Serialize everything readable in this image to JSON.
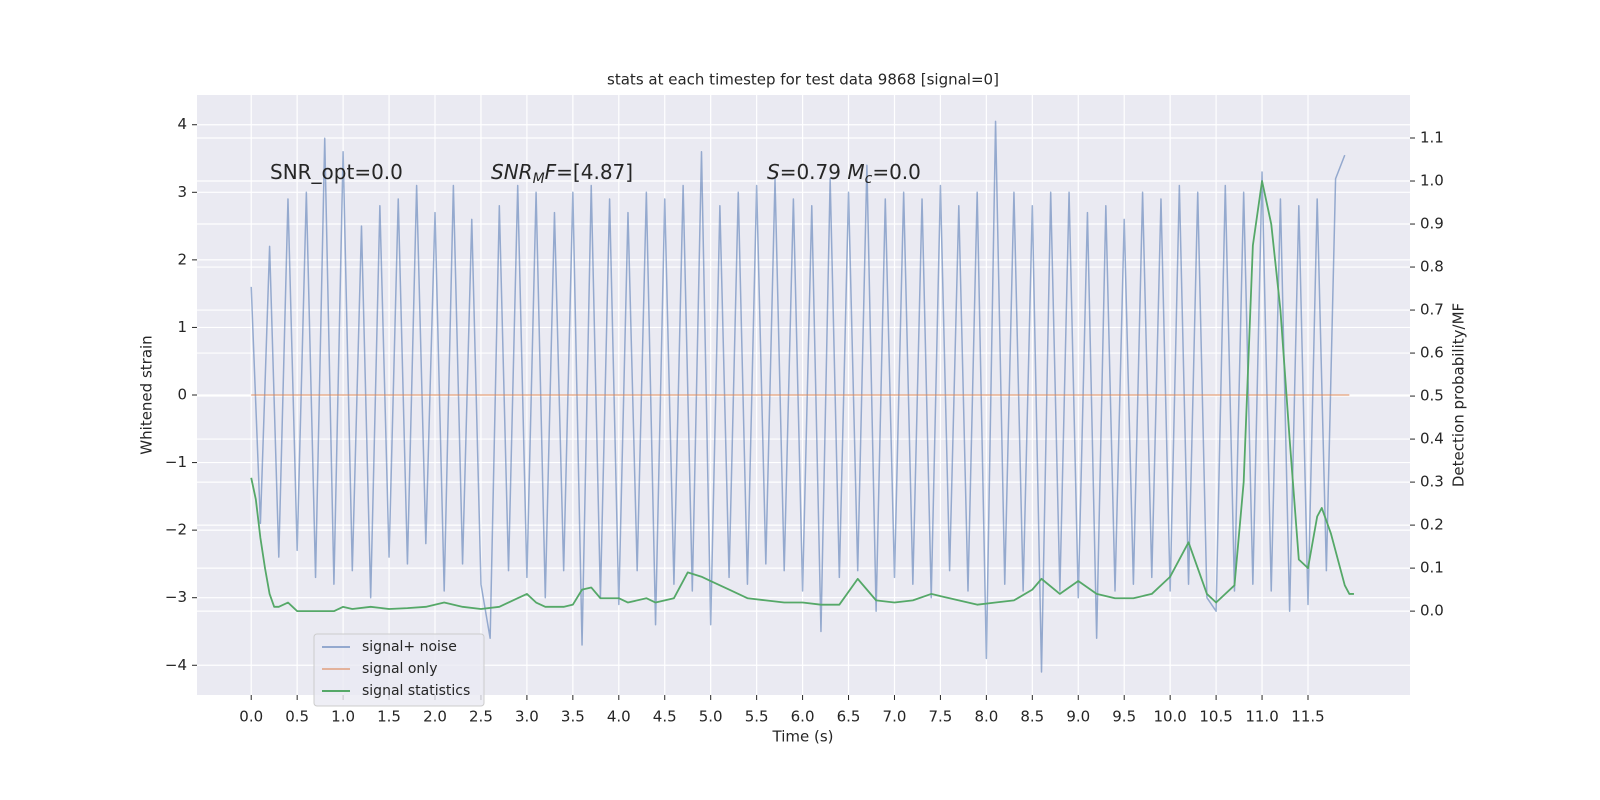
{
  "chart_data": {
    "type": "line",
    "title": "stats at each timestep for test data 9868 [signal=0]",
    "xlabel": "Time (s)",
    "ylabel": "Whitened strain",
    "y2label": "Detection probability/MF",
    "annotations": [
      [
        {
          "text": "SNR_opt=0.0",
          "style": "normal"
        }
      ],
      [
        {
          "text": "SNR",
          "style": "italic"
        },
        {
          "text": "M",
          "style": "sub"
        },
        {
          "text": "F",
          "style": "italic"
        },
        {
          "text": "=[4.87]",
          "style": "normal"
        }
      ],
      [
        {
          "text": "S",
          "style": "italic"
        },
        {
          "text": "=0.79   ",
          "style": "normal"
        },
        {
          "text": "M",
          "style": "italic"
        },
        {
          "text": "c",
          "style": "sub"
        },
        {
          "text": "=0.0",
          "style": "normal"
        }
      ]
    ],
    "xlim": [
      -0.59,
      12.61
    ],
    "ylim": [
      -4.44,
      4.44
    ],
    "y2lim": [
      -0.195,
      1.2
    ],
    "xticks": [
      {
        "value": 0,
        "label": "0.0"
      },
      0.5,
      {
        "value": 1,
        "label": "1.0"
      },
      1.5,
      {
        "value": 2,
        "label": "2.0"
      },
      2.5,
      {
        "value": 3,
        "label": "3.0"
      },
      3.5,
      {
        "value": 4,
        "label": "4.0"
      },
      4.5,
      {
        "value": 5,
        "label": "5.0"
      },
      5.5,
      {
        "value": 6,
        "label": "6.0"
      },
      6.5,
      {
        "value": 7,
        "label": "7.0"
      },
      7.5,
      {
        "value": 8,
        "label": "8.0"
      },
      8.5,
      {
        "value": 9,
        "label": "9.0"
      },
      9.5,
      {
        "value": 10,
        "label": "10.0"
      },
      10.5,
      {
        "value": 11,
        "label": "11.0"
      },
      11.5
    ],
    "yticks": [
      {
        "value": -4,
        "label": "−4"
      },
      {
        "value": -3,
        "label": "−3"
      },
      {
        "value": -2,
        "label": "−2"
      },
      {
        "value": -1,
        "label": "−1"
      },
      0,
      1,
      2,
      3,
      4
    ],
    "y2ticks": [
      {
        "value": 0,
        "label": "0.0"
      },
      0.1,
      0.2,
      0.3,
      0.4,
      0.5,
      0.6,
      0.7,
      0.8,
      0.9,
      {
        "value": 1,
        "label": "1.0"
      },
      1.1
    ],
    "grid": true,
    "legend": "lower left",
    "series": [
      {
        "name": "signal+ noise",
        "color": "#4c72b0",
        "x": [
          0,
          0.1,
          0.2,
          0.3,
          0.4,
          0.5,
          0.6,
          0.7,
          0.8,
          0.9,
          1,
          1.1,
          1.2,
          1.3,
          1.4,
          1.5,
          1.6,
          1.7,
          1.8,
          1.9,
          2,
          2.1,
          2.2,
          2.3,
          2.4,
          2.5,
          2.6,
          2.7,
          2.8,
          2.9,
          3,
          3.1,
          3.2,
          3.3,
          3.4,
          3.5,
          3.6,
          3.7,
          3.8,
          3.9,
          4,
          4.1,
          4.2,
          4.3,
          4.4,
          4.5,
          4.6,
          4.7,
          4.8,
          4.9,
          5,
          5.1,
          5.2,
          5.3,
          5.4,
          5.5,
          5.6,
          5.7,
          5.8,
          5.9,
          6,
          6.1,
          6.2,
          6.3,
          6.4,
          6.5,
          6.6,
          6.7,
          6.8,
          6.9,
          7,
          7.1,
          7.2,
          7.3,
          7.4,
          7.5,
          7.6,
          7.7,
          7.8,
          7.9,
          8,
          8.1,
          8.2,
          8.3,
          8.4,
          8.5,
          8.6,
          8.7,
          8.8,
          8.9,
          9,
          9.1,
          9.2,
          9.3,
          9.4,
          9.5,
          9.6,
          9.7,
          9.8,
          9.9,
          10,
          10.1,
          10.2,
          10.3,
          10.4,
          10.5,
          10.6,
          10.7,
          10.8,
          10.9,
          11,
          11.1,
          11.2,
          11.3,
          11.4,
          11.5,
          11.6,
          11.7,
          11.8,
          11.9
        ],
        "values": [
          1.6,
          -1.9,
          2.2,
          -2.4,
          2.9,
          -2.3,
          3.0,
          -2.7,
          3.8,
          -2.8,
          3.6,
          -2.6,
          2.5,
          -3.0,
          2.8,
          -2.4,
          2.9,
          -2.5,
          3.1,
          -2.2,
          2.7,
          -2.9,
          3.1,
          -2.5,
          2.6,
          -2.8,
          -3.6,
          2.8,
          -2.6,
          3.1,
          -2.7,
          3.0,
          -3.0,
          2.7,
          -2.6,
          3.0,
          -3.7,
          3.1,
          -3.0,
          2.9,
          -3.1,
          2.7,
          -2.6,
          3.0,
          -3.4,
          2.9,
          -2.8,
          3.1,
          -2.9,
          3.6,
          -3.4,
          2.8,
          -2.7,
          3.0,
          -2.8,
          3.1,
          -2.5,
          3.2,
          -2.6,
          2.9,
          -2.9,
          2.8,
          -3.5,
          3.2,
          -2.7,
          3.0,
          -2.6,
          3.4,
          -3.2,
          2.9,
          -2.7,
          3.0,
          -2.8,
          2.9,
          -3.0,
          3.1,
          -2.6,
          2.8,
          -2.9,
          3.0,
          -3.9,
          4.05,
          -2.8,
          3.0,
          -2.9,
          2.8,
          -4.1,
          3.0,
          -2.9,
          3.0,
          -3.0,
          2.7,
          -3.6,
          2.8,
          -2.9,
          2.6,
          -2.8,
          3.0,
          -2.7,
          2.9,
          -2.9,
          3.1,
          -2.8,
          3.0,
          -3.0,
          -3.2,
          3.1,
          -2.9,
          3.0,
          -2.8,
          3.3,
          -2.9,
          2.9,
          -3.2,
          2.8,
          -3.1,
          2.9,
          -2.6,
          3.2,
          3.55
        ]
      },
      {
        "name": "signal only",
        "color": "#dd8452",
        "x": [
          0,
          11.95
        ],
        "values": [
          0,
          0
        ]
      },
      {
        "name": "signal statistics",
        "color": "#55a868",
        "axis": "y2",
        "x": [
          0,
          0.05,
          0.1,
          0.15,
          0.2,
          0.25,
          0.3,
          0.4,
          0.45,
          0.5,
          0.6,
          0.8,
          0.9,
          1,
          1.1,
          1.3,
          1.5,
          1.7,
          1.9,
          2.1,
          2.3,
          2.5,
          2.7,
          2.9,
          3,
          3.1,
          3.2,
          3.4,
          3.5,
          3.6,
          3.7,
          3.8,
          4,
          4.1,
          4.3,
          4.4,
          4.6,
          4.75,
          4.9,
          5,
          5.2,
          5.4,
          5.6,
          5.8,
          6,
          6.2,
          6.4,
          6.6,
          6.7,
          6.8,
          7,
          7.2,
          7.4,
          7.5,
          7.7,
          7.9,
          8.1,
          8.3,
          8.5,
          8.6,
          8.8,
          9,
          9.2,
          9.4,
          9.6,
          9.8,
          10,
          10.2,
          10.4,
          10.5,
          10.7,
          10.8,
          10.9,
          11,
          11.1,
          11.2,
          11.3,
          11.4,
          11.5,
          11.6,
          11.65,
          11.75,
          11.9,
          11.95,
          12
        ],
        "values": [
          0.31,
          0.26,
          0.17,
          0.1,
          0.04,
          0.01,
          0.01,
          0.02,
          0.01,
          0,
          0,
          0,
          0,
          0.01,
          0.005,
          0.01,
          0.005,
          0.007,
          0.01,
          0.02,
          0.01,
          0.005,
          0.01,
          0.03,
          0.04,
          0.02,
          0.01,
          0.01,
          0.015,
          0.05,
          0.055,
          0.03,
          0.03,
          0.02,
          0.03,
          0.02,
          0.03,
          0.09,
          0.08,
          0.07,
          0.05,
          0.03,
          0.025,
          0.02,
          0.02,
          0.015,
          0.015,
          0.075,
          0.05,
          0.025,
          0.02,
          0.025,
          0.04,
          0.035,
          0.025,
          0.015,
          0.02,
          0.025,
          0.05,
          0.075,
          0.04,
          0.07,
          0.04,
          0.03,
          0.03,
          0.04,
          0.08,
          0.16,
          0.04,
          0.02,
          0.06,
          0.3,
          0.85,
          1,
          0.9,
          0.7,
          0.4,
          0.12,
          0.1,
          0.22,
          0.24,
          0.18,
          0.06,
          0.04,
          0.04
        ]
      }
    ]
  }
}
